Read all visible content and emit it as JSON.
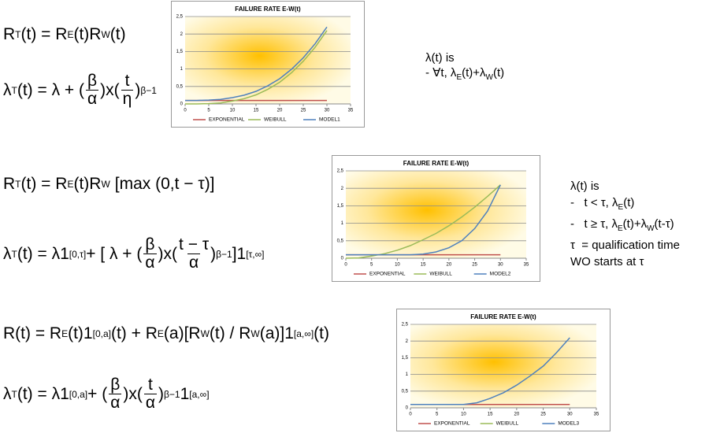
{
  "formulas": [
    [
      "R",
      "T",
      "(t) = R",
      "E",
      "(t)R",
      "W",
      "(t)"
    ],
    [
      "λ",
      "T",
      "(t) = λ + (",
      "β",
      "α",
      ")x(",
      "t",
      "η",
      ")",
      "β−1"
    ],
    [
      "R",
      "T",
      "(t) = R",
      "E",
      "(t)R",
      "W",
      "[max (0,t − τ)]"
    ],
    [
      "λ",
      "T",
      "(t) = λ1",
      "[0,τ]",
      " + [ λ + (",
      "β",
      "α",
      ")x(",
      "t − τ",
      "α",
      ")",
      "β−1",
      " ]1",
      "[τ,∞]"
    ],
    [
      "R(t) = R",
      "E",
      "(t)1",
      "[0,a]",
      "(t) + R",
      "E",
      "(a)[R",
      "W",
      "(t) / R",
      "W",
      "(a)]1",
      "[a,∞]",
      "(t)"
    ],
    [
      "λ",
      "T",
      "(t) = λ1",
      "[0,a]",
      " + (",
      "β",
      "α",
      ")x(",
      "t",
      "α",
      ")",
      "β−1",
      "1",
      "[a,∞]"
    ]
  ],
  "notes": [
    [
      [
        "λ(t) is"
      ],
      [
        "- ∀t, λ",
        "E",
        "(t)+λ",
        "W",
        "(t)"
      ]
    ],
    [
      [
        "λ(t) is"
      ],
      [
        "-   t < τ, λ",
        "E",
        "(t)"
      ],
      [
        "-   t ≥ τ, λ",
        "E",
        "(t)+λ",
        "W",
        "(t-τ)"
      ],
      [
        "τ  = qualification time"
      ],
      [
        "WO starts at τ"
      ]
    ]
  ],
  "chart_data": [
    {
      "type": "line",
      "title": "FAILURE RATE E-W(t)",
      "x": [
        0,
        2.5,
        5,
        7.5,
        10,
        12.5,
        15,
        17.5,
        20,
        22.5,
        25,
        27.5,
        30
      ],
      "series": [
        {
          "name": "EXPONENTIAL",
          "color": "#c0504d",
          "values": [
            0.1,
            0.1,
            0.1,
            0.1,
            0.1,
            0.1,
            0.1,
            0.1,
            0.1,
            0.1,
            0.1,
            0.1,
            0.1
          ]
        },
        {
          "name": "WEIBULL",
          "color": "#9bbb59",
          "values": [
            0,
            0.001,
            0.01,
            0.03,
            0.08,
            0.15,
            0.26,
            0.42,
            0.62,
            0.89,
            1.22,
            1.62,
            2.1
          ]
        },
        {
          "name": "MODEL1",
          "color": "#4f81bd",
          "values": [
            0.1,
            0.1,
            0.11,
            0.13,
            0.18,
            0.25,
            0.36,
            0.52,
            0.72,
            0.99,
            1.32,
            1.72,
            2.2
          ]
        }
      ],
      "xlim": [
        0,
        35
      ],
      "xticks": [
        0,
        5,
        10,
        15,
        20,
        25,
        30,
        35
      ],
      "ylim": [
        0,
        2.5
      ],
      "yticks": [
        0,
        {
          "value": 0.5,
          "label": "0,5"
        },
        1,
        {
          "value": 1.5,
          "label": "1,5"
        },
        2,
        {
          "value": 2.5,
          "label": "2,5"
        }
      ],
      "grid": true
    },
    {
      "type": "line",
      "title": "FAILURE RATE E-W(t)",
      "x": [
        0,
        2.5,
        5,
        7.5,
        10,
        12.5,
        15,
        17.5,
        20,
        22.5,
        25,
        27.5,
        30
      ],
      "series": [
        {
          "name": "EXPONENTIAL",
          "color": "#c0504d",
          "values": [
            0.1,
            0.1,
            0.1,
            0.1,
            0.1,
            0.1,
            0.1,
            0.1,
            0.1,
            0.1,
            0.1,
            0.1,
            0.1
          ]
        },
        {
          "name": "WEIBULL",
          "color": "#9bbb59",
          "values": [
            0,
            0.01,
            0.06,
            0.13,
            0.23,
            0.36,
            0.53,
            0.71,
            0.93,
            1.18,
            1.46,
            1.77,
            2.1
          ]
        },
        {
          "name": "MODEL2",
          "color": "#4f81bd",
          "values": [
            0.1,
            0.1,
            0.1,
            0.1,
            0.1,
            0.1,
            0.12,
            0.18,
            0.3,
            0.5,
            0.85,
            1.35,
            2.1
          ]
        }
      ],
      "xlim": [
        0,
        35
      ],
      "xticks": [
        0,
        5,
        10,
        15,
        20,
        25,
        30,
        35
      ],
      "ylim": [
        0,
        2.5
      ],
      "yticks": [
        0,
        {
          "value": 0.5,
          "label": "0,5"
        },
        1,
        {
          "value": 1.5,
          "label": "1,5"
        },
        2,
        {
          "value": 2.5,
          "label": "2,5"
        }
      ],
      "grid": true
    },
    {
      "type": "line",
      "title": "FAILURE RATE E-W(t)",
      "x": [
        0,
        2.5,
        5,
        7.5,
        10,
        12.5,
        15,
        17.5,
        20,
        22.5,
        25,
        27.5,
        30
      ],
      "series": [
        {
          "name": "EXPONENTIAL",
          "color": "#c0504d",
          "values": [
            0.1,
            0.1,
            0.1,
            0.1,
            0.1,
            0.1,
            0.1,
            0.1,
            0.1,
            0.1,
            0.1,
            0.1,
            0.1
          ]
        },
        {
          "name": "WEIBULL",
          "color": "#9bbb59",
          "values": [
            null,
            null,
            null,
            null,
            null,
            null,
            null,
            null,
            null,
            null,
            null,
            null,
            null
          ]
        },
        {
          "name": "MODEL3",
          "color": "#4f81bd",
          "values": [
            0.1,
            0.1,
            0.1,
            0.1,
            0.1,
            0.15,
            0.28,
            0.45,
            0.68,
            0.95,
            1.25,
            1.65,
            2.1
          ]
        }
      ],
      "xlim": [
        0,
        35
      ],
      "xticks": [
        0,
        5,
        10,
        15,
        20,
        25,
        30,
        35
      ],
      "ylim": [
        0,
        2.5
      ],
      "yticks": [
        0,
        {
          "value": 0.5,
          "label": "0,5"
        },
        1,
        {
          "value": 1.5,
          "label": "1,5"
        },
        2,
        {
          "value": 2.5,
          "label": "2,5"
        }
      ],
      "grid": true
    }
  ]
}
